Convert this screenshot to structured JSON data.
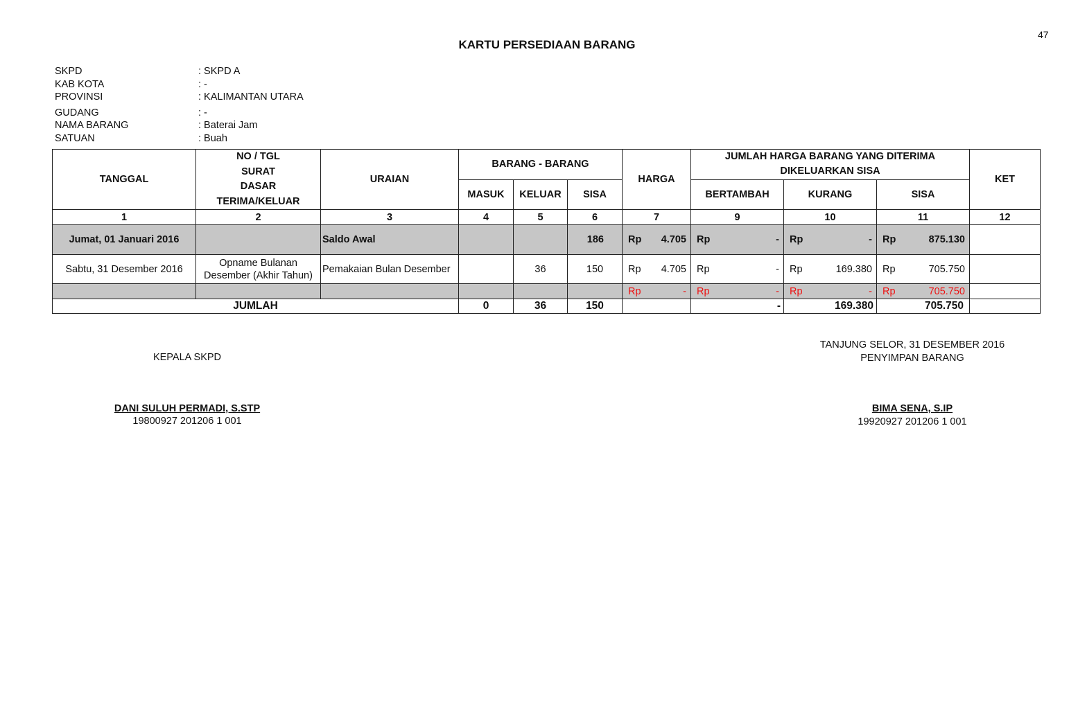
{
  "page_number": "47",
  "title": "KARTU PERSEDIAAN BARANG",
  "info": [
    {
      "label": "SKPD",
      "value": ":  SKPD A"
    },
    {
      "label": "KAB KOTA",
      "value": ":  -"
    },
    {
      "label": "PROVINSI",
      "value": ":  KALIMANTAN UTARA"
    },
    {
      "label": "GUDANG",
      "value": ":  -"
    },
    {
      "label": "NAMA BARANG",
      "value": ":  Baterai Jam"
    },
    {
      "label": "SATUAN",
      "value": ":   Buah"
    }
  ],
  "table": {
    "headers": {
      "tanggal": "TANGGAL",
      "no_tgl": [
        "NO / TGL",
        "SURAT",
        "DASAR",
        "TERIMA/KELUAR"
      ],
      "uraian": "URAIAN",
      "barang": "BARANG - BARANG",
      "masuk": "MASUK",
      "keluar": "KELUAR",
      "sisa": "SISA",
      "harga": "HARGA",
      "jumlah_harga": [
        "JUMLAH HARGA BARANG YANG DITERIMA",
        "DIKELUARKAN SISA"
      ],
      "bertambah": "BERTAMBAH",
      "kurang": "KURANG",
      "sisa2": "SISA",
      "ket": "KET"
    },
    "col_numbers": [
      "1",
      "2",
      "3",
      "4",
      "5",
      "6",
      "7",
      "9",
      "10",
      "11",
      "12"
    ],
    "rows": [
      {
        "tanggal": "Jumat, 01 Januari 2016",
        "no_tgl": "",
        "uraian": "Saldo Awal",
        "masuk": "",
        "keluar": "",
        "sisa": "186",
        "harga": "4.705",
        "bertambah": "-",
        "kurang": "-",
        "sisa_rp": "875.130",
        "ket": ""
      },
      {
        "tanggal": "Sabtu, 31 Desember 2016",
        "no_tgl": [
          "Opname Bulanan",
          "Desember (Akhir Tahun)"
        ],
        "uraian": "Pemakaian Bulan Desember",
        "masuk": "",
        "keluar": "36",
        "sisa": "150",
        "harga": "4.705",
        "bertambah": "-",
        "kurang": "169.380",
        "sisa_rp": "705.750",
        "ket": ""
      },
      {
        "harga": "-",
        "bertambah": "-",
        "kurang": "-",
        "sisa_rp": "705.750"
      }
    ],
    "currency": "Rp",
    "total": {
      "label": "JUMLAH",
      "masuk": "0",
      "keluar": "36",
      "sisa": "150",
      "bertambah": "-",
      "kurang": "169.380",
      "sisa_rp": "705.750"
    },
    "colors": {
      "shade": "#c6c6c6",
      "red": "#e11111"
    }
  },
  "signatures": {
    "left": {
      "role": "KEPALA SKPD",
      "name": "DANI SULUH PERMADI, S.STP",
      "nip": "19800927 201206 1 001"
    },
    "right": {
      "place_date": "TANJUNG SELOR, 31 DESEMBER 2016",
      "role": "PENYIMPAN BARANG",
      "name": "BIMA SENA, S.IP",
      "nip": "19920927 201206 1 001"
    }
  }
}
